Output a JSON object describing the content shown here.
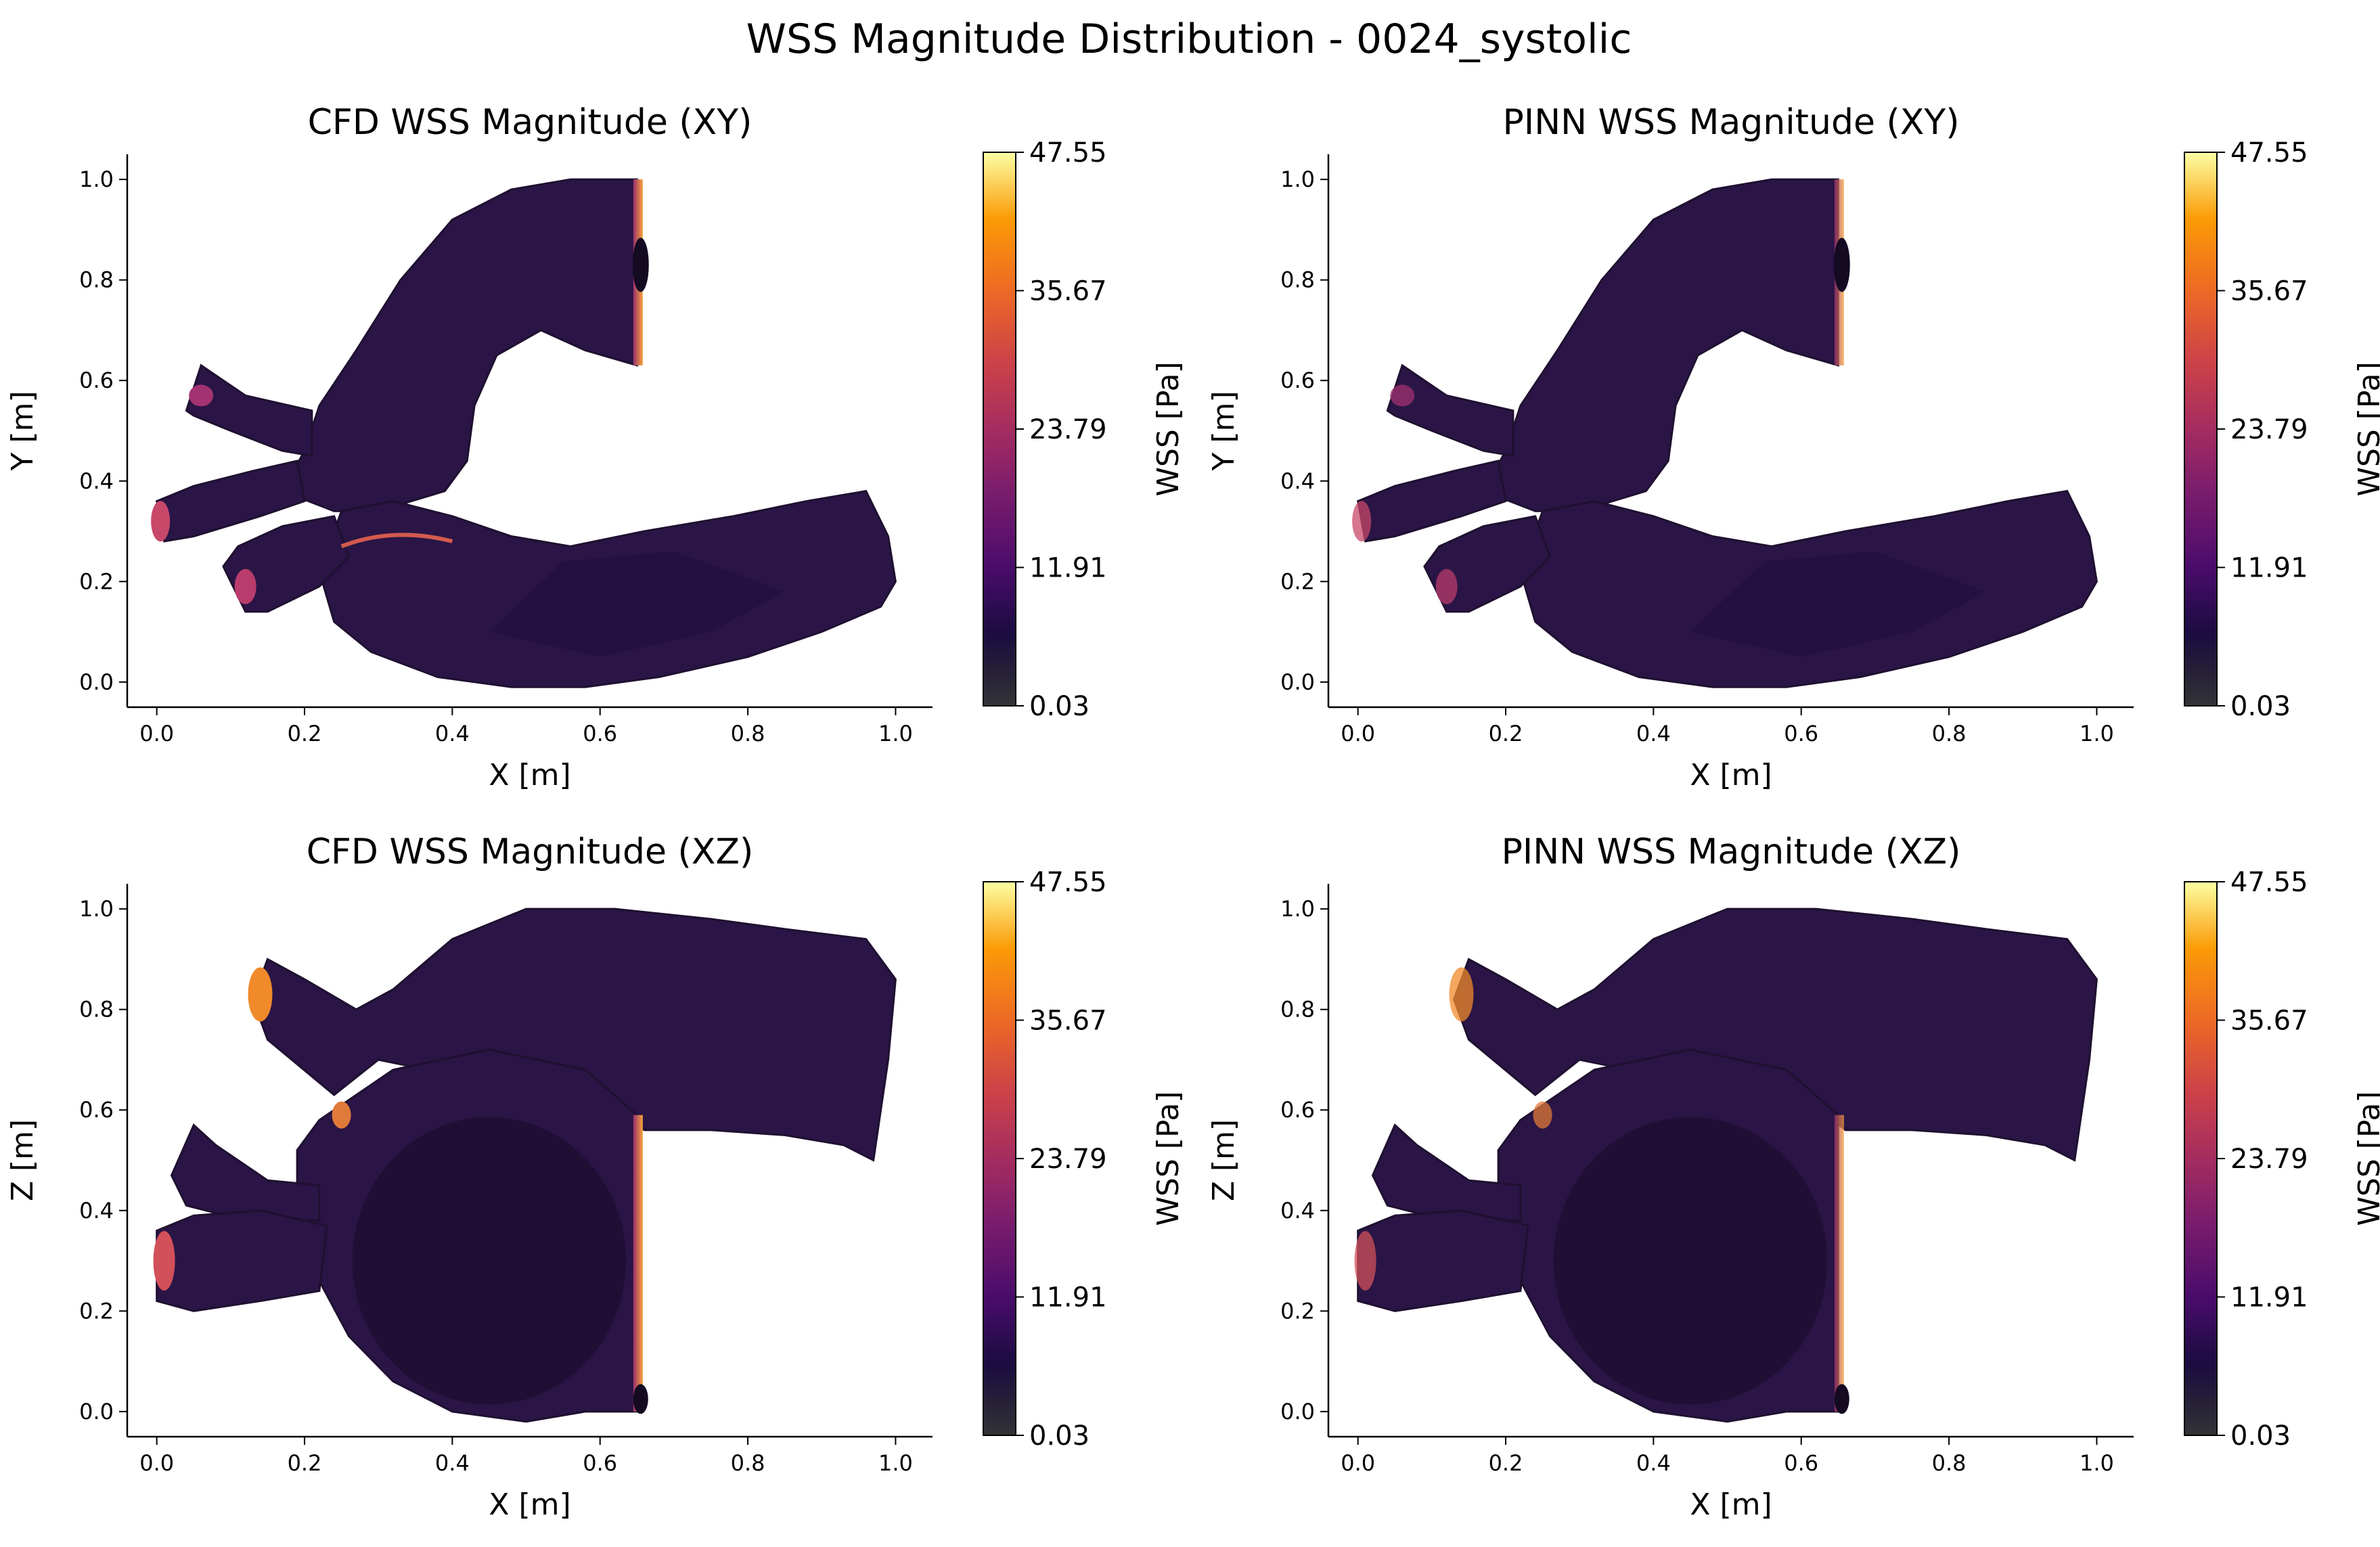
{
  "figure_title": "WSS Magnitude Distribution - 0024_systolic",
  "chart_data": [
    {
      "type": "scatter",
      "title": "CFD WSS Magnitude (XY)",
      "xlabel": "X [m]",
      "ylabel": "Y [m]",
      "xlim": [
        -0.04,
        1.05
      ],
      "ylim": [
        -0.05,
        1.05
      ],
      "xticks": [
        "0.0",
        "0.2",
        "0.4",
        "0.6",
        "0.8",
        "1.0"
      ],
      "yticks": [
        "0.0",
        "0.2",
        "0.4",
        "0.6",
        "0.8",
        "1.0"
      ],
      "colorbar": {
        "label": "WSS [Pa]",
        "ticks": [
          "0.03",
          "11.91",
          "23.79",
          "35.67",
          "47.55"
        ],
        "range": [
          0.03,
          47.55
        ],
        "colormap": "inferno"
      },
      "description": "Vessel surface points colored by WSS magnitude; high WSS (yellow-orange) at outlet edge x≈0.65 and at inlet branch tips"
    },
    {
      "type": "scatter",
      "title": "PINN WSS Magnitude (XY)",
      "xlabel": "X [m]",
      "ylabel": "Y [m]",
      "xlim": [
        -0.04,
        1.05
      ],
      "ylim": [
        -0.05,
        1.05
      ],
      "xticks": [
        "0.0",
        "0.2",
        "0.4",
        "0.6",
        "0.8",
        "1.0"
      ],
      "yticks": [
        "0.0",
        "0.2",
        "0.4",
        "0.6",
        "0.8",
        "1.0"
      ],
      "colorbar": {
        "label": "WSS [Pa]",
        "ticks": [
          "0.03",
          "11.91",
          "23.79",
          "35.67",
          "47.55"
        ],
        "range": [
          0.03,
          47.55
        ],
        "colormap": "inferno"
      }
    },
    {
      "type": "scatter",
      "title": "CFD WSS Magnitude (XZ)",
      "xlabel": "X [m]",
      "ylabel": "Z [m]",
      "xlim": [
        -0.04,
        1.05
      ],
      "ylim": [
        -0.05,
        1.05
      ],
      "xticks": [
        "0.0",
        "0.2",
        "0.4",
        "0.6",
        "0.8",
        "1.0"
      ],
      "yticks": [
        "0.0",
        "0.2",
        "0.4",
        "0.6",
        "0.8",
        "1.0"
      ],
      "colorbar": {
        "label": "WSS [Pa]",
        "ticks": [
          "0.03",
          "11.91",
          "23.79",
          "35.67",
          "47.55"
        ],
        "range": [
          0.03,
          47.55
        ],
        "colormap": "inferno"
      }
    },
    {
      "type": "scatter",
      "title": "PINN WSS Magnitude (XZ)",
      "xlabel": "X [m]",
      "ylabel": "Z [m]",
      "xlim": [
        -0.04,
        1.05
      ],
      "ylim": [
        -0.05,
        1.05
      ],
      "xticks": [
        "0.0",
        "0.2",
        "0.4",
        "0.6",
        "0.8",
        "1.0"
      ],
      "yticks": [
        "0.0",
        "0.2",
        "0.4",
        "0.6",
        "0.8",
        "1.0"
      ],
      "colorbar": {
        "label": "WSS [Pa]",
        "ticks": [
          "0.03",
          "11.91",
          "23.79",
          "35.67",
          "47.55"
        ],
        "range": [
          0.03,
          47.55
        ],
        "colormap": "inferno"
      }
    }
  ],
  "colors": {
    "low": "#1f1030",
    "body": "#2a1546",
    "mid": "#4a1b6b",
    "med_high": "#b5357a",
    "high": "#f07c22",
    "max": "#fcffa4"
  }
}
